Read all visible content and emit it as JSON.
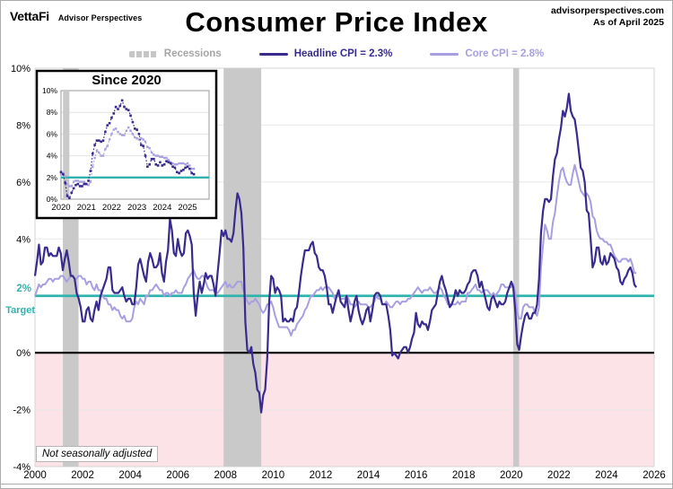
{
  "header": {
    "logo_primary": "VettaFi",
    "logo_secondary": "Advisor Perspectives",
    "title": "Consumer Price Index",
    "source_line1": "advisorperspectives.com",
    "source_line2": "As of April 2025"
  },
  "legend": {
    "recessions_label": "Recessions",
    "headline_label": "Headline CPI = 2.3%",
    "core_label": "Core CPI =  2.8%"
  },
  "annotations": {
    "target_value_label": "2%",
    "target_label": "Target",
    "footnote": "Not seasonally adjusted"
  },
  "colors": {
    "headline": "#382b8d",
    "core": "#a79fe0",
    "target": "#2fb3ac",
    "recession": "#c9c9c9",
    "below_zero_fill": "#fce3e8",
    "gridline": "#e8e8e8",
    "plot_border": "#d4d4d4",
    "legend_gray": "#a5a5a5",
    "zero_line": "#000000"
  },
  "chart_data": {
    "type": "line",
    "title": "Consumer Price Index",
    "start": "2000-01",
    "frequency": "monthly",
    "xlim": [
      2000,
      2026
    ],
    "ylim": [
      -4,
      10
    ],
    "x_ticks_years": [
      2000,
      2002,
      2004,
      2006,
      2008,
      2010,
      2012,
      2014,
      2016,
      2018,
      2020,
      2022,
      2024,
      2026
    ],
    "y_ticks_percent": [
      10,
      8,
      6,
      4,
      2,
      0,
      -2,
      -4
    ],
    "target_percent": 2,
    "grid": "horizontal-only",
    "legend_position": "top-center",
    "recessions_year_ranges": [
      [
        2001.17,
        2001.83
      ],
      [
        2007.92,
        2009.5
      ],
      [
        2020.08,
        2020.33
      ]
    ],
    "series": [
      {
        "name": "Headline CPI",
        "latest_label": "Headline CPI = 2.3%",
        "values": [
          2.7,
          3.2,
          3.8,
          3.1,
          3.2,
          3.7,
          3.7,
          3.4,
          3.5,
          3.4,
          3.4,
          3.4,
          3.7,
          3.5,
          2.9,
          3.3,
          3.6,
          3.2,
          2.7,
          2.7,
          2.6,
          2.1,
          1.9,
          1.6,
          1.1,
          1.1,
          1.5,
          1.6,
          1.2,
          1.1,
          1.5,
          1.8,
          1.5,
          2.0,
          2.2,
          2.4,
          2.6,
          3.0,
          3.0,
          2.2,
          2.1,
          2.1,
          2.1,
          2.2,
          2.3,
          2.0,
          1.8,
          1.9,
          1.9,
          1.7,
          1.7,
          2.3,
          3.1,
          3.3,
          3.0,
          2.7,
          2.5,
          3.2,
          3.5,
          3.3,
          3.0,
          3.0,
          3.1,
          3.5,
          2.8,
          2.5,
          3.2,
          3.6,
          4.7,
          4.3,
          3.5,
          3.4,
          4.0,
          3.6,
          3.4,
          3.5,
          4.2,
          4.3,
          4.1,
          3.8,
          2.1,
          1.3,
          2.0,
          2.5,
          2.1,
          2.4,
          2.8,
          2.6,
          2.7,
          2.7,
          2.4,
          2.0,
          2.8,
          3.5,
          4.3,
          4.1,
          4.3,
          4.0,
          4.0,
          3.9,
          4.2,
          5.0,
          5.6,
          5.4,
          4.9,
          3.7,
          1.1,
          0.1,
          0.0,
          0.2,
          -0.4,
          -0.7,
          -1.3,
          -1.4,
          -2.1,
          -1.5,
          -1.3,
          -0.2,
          1.8,
          2.7,
          2.6,
          2.1,
          2.3,
          2.2,
          2.0,
          1.1,
          1.2,
          1.1,
          1.1,
          1.2,
          1.1,
          1.5,
          1.6,
          2.1,
          2.7,
          3.2,
          3.6,
          3.6,
          3.6,
          3.8,
          3.9,
          3.5,
          3.4,
          3.0,
          2.9,
          2.9,
          2.7,
          2.3,
          1.7,
          1.7,
          1.4,
          1.7,
          2.0,
          2.2,
          1.8,
          1.7,
          1.6,
          2.0,
          1.5,
          1.1,
          1.4,
          1.8,
          2.0,
          1.5,
          1.2,
          1.0,
          1.2,
          1.5,
          1.6,
          1.1,
          1.5,
          2.0,
          2.1,
          2.1,
          2.0,
          1.7,
          1.7,
          1.7,
          1.3,
          0.8,
          -0.1,
          0.0,
          -0.1,
          -0.2,
          0.0,
          0.1,
          0.2,
          0.2,
          0.0,
          0.2,
          0.5,
          0.7,
          1.4,
          1.0,
          0.9,
          1.1,
          1.0,
          1.0,
          0.8,
          1.1,
          1.5,
          1.6,
          1.7,
          2.1,
          2.5,
          2.7,
          2.4,
          2.2,
          1.9,
          1.6,
          1.7,
          1.9,
          2.2,
          2.0,
          2.2,
          2.1,
          2.1,
          2.2,
          2.4,
          2.5,
          2.8,
          2.9,
          2.9,
          2.7,
          2.3,
          2.5,
          2.2,
          1.9,
          1.6,
          1.5,
          1.9,
          2.0,
          1.8,
          1.6,
          1.8,
          1.7,
          1.7,
          1.8,
          2.1,
          2.3,
          2.5,
          2.3,
          1.5,
          0.3,
          0.1,
          0.6,
          1.0,
          1.3,
          1.4,
          1.2,
          1.2,
          1.4,
          1.4,
          1.7,
          2.6,
          4.2,
          5.0,
          5.4,
          5.4,
          5.3,
          5.4,
          6.2,
          6.8,
          7.0,
          7.5,
          7.9,
          8.5,
          8.3,
          8.6,
          9.1,
          8.5,
          8.3,
          8.2,
          7.7,
          7.1,
          6.5,
          6.4,
          6.0,
          5.0,
          4.9,
          4.0,
          3.0,
          3.2,
          3.7,
          3.7,
          3.2,
          3.1,
          3.4,
          3.1,
          3.2,
          3.5,
          3.4,
          3.3,
          3.0,
          2.9,
          2.5,
          2.4,
          2.6,
          2.7,
          2.9,
          3.0,
          2.8,
          2.4,
          2.3
        ]
      },
      {
        "name": "Core CPI",
        "latest_label": "Core CPI =  2.8%",
        "values": [
          2.0,
          2.2,
          2.4,
          2.3,
          2.4,
          2.4,
          2.5,
          2.6,
          2.6,
          2.5,
          2.6,
          2.6,
          2.6,
          2.7,
          2.7,
          2.6,
          2.5,
          2.6,
          2.7,
          2.7,
          2.6,
          2.6,
          2.7,
          2.7,
          2.6,
          2.6,
          2.4,
          2.5,
          2.5,
          2.3,
          2.2,
          2.4,
          2.2,
          2.2,
          2.0,
          1.9,
          1.9,
          1.7,
          1.7,
          1.5,
          1.6,
          1.5,
          1.5,
          1.3,
          1.2,
          1.3,
          1.1,
          1.1,
          1.1,
          1.2,
          1.6,
          1.8,
          1.7,
          1.9,
          1.8,
          1.7,
          2.0,
          2.0,
          2.2,
          2.2,
          2.3,
          2.4,
          2.3,
          2.2,
          2.2,
          2.0,
          2.1,
          2.1,
          2.0,
          2.1,
          2.1,
          2.2,
          2.1,
          2.1,
          2.1,
          2.3,
          2.4,
          2.6,
          2.7,
          2.8,
          2.9,
          2.7,
          2.6,
          2.6,
          2.7,
          2.7,
          2.5,
          2.3,
          2.2,
          2.2,
          2.2,
          2.1,
          2.1,
          2.2,
          2.3,
          2.4,
          2.5,
          2.3,
          2.4,
          2.3,
          2.3,
          2.4,
          2.5,
          2.5,
          2.5,
          2.2,
          2.0,
          1.8,
          1.7,
          1.8,
          1.8,
          1.9,
          1.8,
          1.7,
          1.5,
          1.4,
          1.5,
          1.7,
          1.7,
          1.8,
          1.6,
          1.3,
          1.1,
          0.9,
          0.9,
          0.9,
          0.9,
          0.9,
          0.8,
          0.6,
          0.8,
          0.8,
          1.0,
          1.1,
          1.2,
          1.3,
          1.5,
          1.6,
          1.8,
          2.0,
          2.0,
          2.1,
          2.2,
          2.2,
          2.3,
          2.2,
          2.3,
          2.3,
          2.3,
          2.2,
          2.1,
          1.9,
          2.0,
          2.0,
          1.9,
          1.9,
          1.9,
          2.0,
          1.9,
          1.7,
          1.7,
          1.6,
          1.7,
          1.8,
          1.7,
          1.7,
          1.7,
          1.7,
          1.6,
          1.6,
          1.7,
          1.8,
          2.0,
          1.9,
          1.9,
          1.7,
          1.7,
          1.8,
          1.7,
          1.6,
          1.6,
          1.7,
          1.8,
          1.8,
          1.7,
          1.8,
          1.8,
          1.8,
          1.9,
          1.9,
          2.0,
          2.1,
          2.2,
          2.3,
          2.2,
          2.1,
          2.2,
          2.2,
          2.2,
          2.3,
          2.2,
          2.1,
          2.1,
          2.2,
          2.3,
          2.2,
          2.0,
          1.9,
          1.7,
          1.7,
          1.7,
          1.7,
          1.7,
          1.8,
          1.7,
          1.8,
          1.8,
          1.8,
          2.1,
          2.1,
          2.2,
          2.3,
          2.4,
          2.2,
          2.2,
          2.1,
          2.2,
          2.2,
          2.2,
          2.1,
          2.0,
          2.1,
          2.0,
          2.1,
          2.2,
          2.4,
          2.4,
          2.3,
          2.3,
          2.3,
          2.3,
          2.4,
          2.1,
          1.4,
          1.2,
          1.2,
          1.6,
          1.7,
          1.7,
          1.6,
          1.6,
          1.6,
          1.4,
          1.3,
          1.6,
          3.0,
          3.8,
          4.5,
          4.3,
          4.0,
          4.0,
          4.6,
          4.9,
          5.5,
          6.0,
          6.4,
          6.5,
          6.2,
          6.0,
          5.9,
          5.9,
          6.3,
          6.6,
          6.3,
          6.0,
          5.7,
          5.6,
          5.5,
          5.6,
          5.5,
          5.3,
          4.8,
          4.7,
          4.3,
          4.1,
          4.0,
          4.0,
          3.9,
          3.9,
          3.8,
          3.8,
          3.6,
          3.4,
          3.3,
          3.2,
          3.2,
          3.3,
          3.3,
          3.3,
          3.2,
          3.3,
          3.1,
          2.8,
          2.8
        ]
      }
    ],
    "inset": {
      "title": "Since 2020",
      "start": "2020-01",
      "x_ticks_years": [
        2020,
        2021,
        2022,
        2023,
        2024,
        2025
      ],
      "y_ticks_percent": [
        10,
        8,
        6,
        4,
        2,
        0
      ],
      "ylim": [
        0,
        10
      ]
    }
  }
}
